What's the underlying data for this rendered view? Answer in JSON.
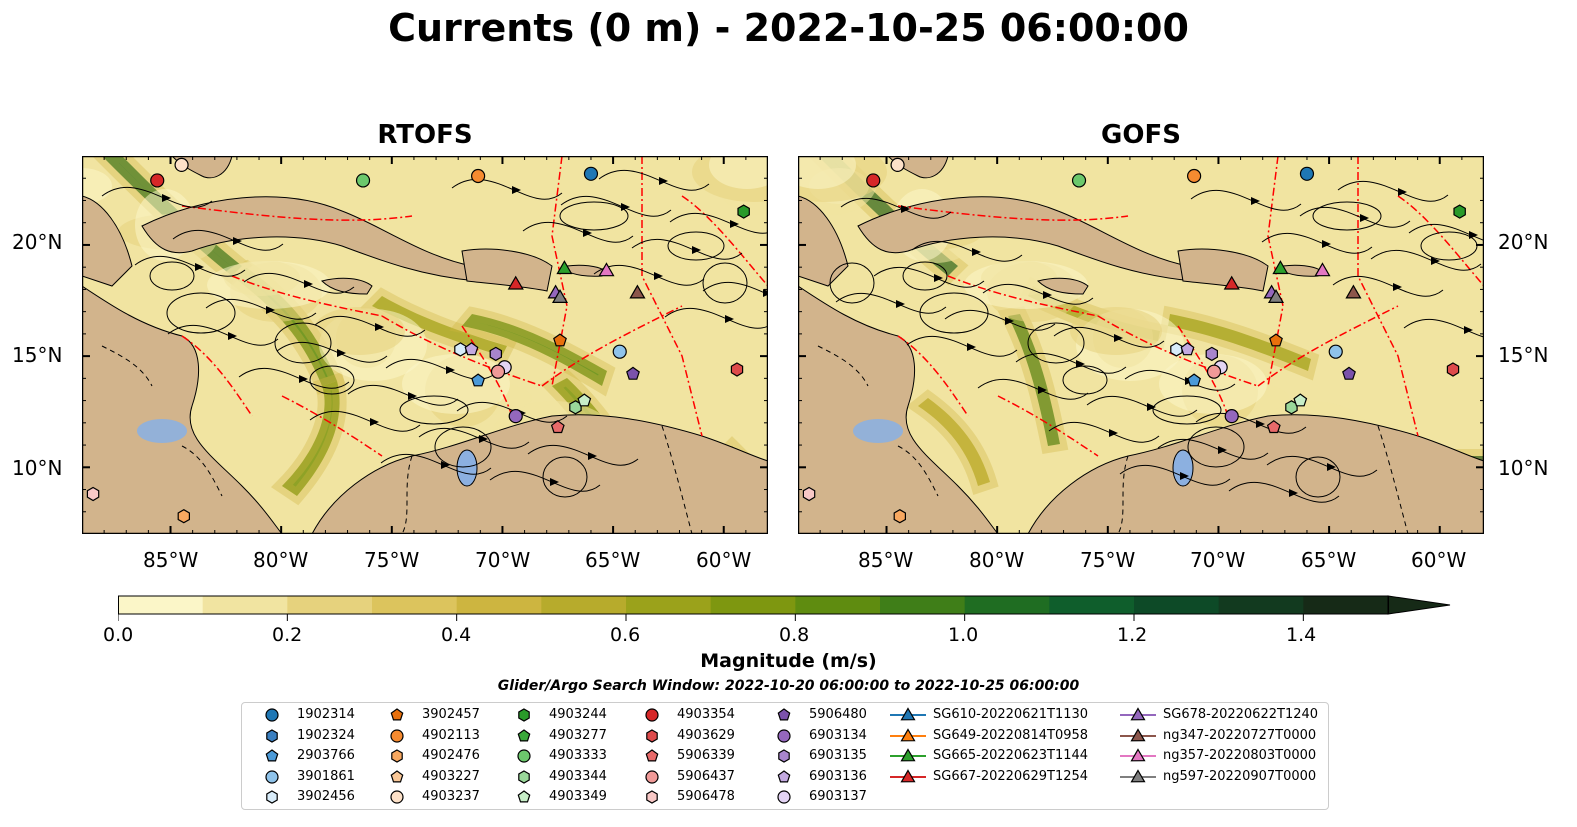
{
  "title": "Currents (0 m) - 2022-10-25 06:00:00",
  "panels": [
    {
      "title": "RTOFS"
    },
    {
      "title": "GOFS"
    }
  ],
  "lat_labels": [
    "20°N",
    "15°N",
    "10°N"
  ],
  "lon_labels": [
    "85°W",
    "80°W",
    "75°W",
    "70°W",
    "65°W",
    "60°W"
  ],
  "map_extent": {
    "lon": [
      -89,
      -58
    ],
    "lat": [
      7,
      24
    ]
  },
  "colorbar": {
    "label": "Magnitude (m/s)",
    "ticks": [
      "0.0",
      "0.2",
      "0.4",
      "0.6",
      "0.8",
      "1.0",
      "1.2",
      "1.4"
    ],
    "range": [
      0.0,
      1.5
    ],
    "extend": "max",
    "colormap_colors": [
      "#fbf6c8",
      "#f1e4a1",
      "#e6d27d",
      "#dcc45d",
      "#cdb540",
      "#b7ab2c",
      "#9ba21b",
      "#7e9710",
      "#5f8c10",
      "#3f7e18",
      "#1f6d22",
      "#0f5e2c",
      "#0d4a27",
      "#123a1f",
      "#162a17"
    ]
  },
  "search_window": "Glider/Argo Search Window: 2022-10-20 06:00:00 to 2022-10-25 06:00:00",
  "colors": {
    "land": "#d2b48c",
    "lake": "#8cb0e0",
    "boundary": "#ff0000",
    "coast": "#000000"
  },
  "legend": {
    "columns": [
      [
        {
          "label": "1902314",
          "marker": "circle",
          "color": "#1f77b4"
        },
        {
          "label": "1902324",
          "marker": "hexagon",
          "color": "#3a7fc0"
        },
        {
          "label": "2903766",
          "marker": "pentagon",
          "color": "#4b9ad8"
        },
        {
          "label": "3901861",
          "marker": "circle",
          "color": "#8fc3ea"
        },
        {
          "label": "3902456",
          "marker": "hexagon",
          "color": "#d8ecfa"
        }
      ],
      [
        {
          "label": "3902457",
          "marker": "pentagon",
          "color": "#e8700c"
        },
        {
          "label": "4902113",
          "marker": "circle",
          "color": "#f68b30"
        },
        {
          "label": "4902476",
          "marker": "hexagon",
          "color": "#f8a860"
        },
        {
          "label": "4903227",
          "marker": "pentagon",
          "color": "#fac898"
        },
        {
          "label": "4903237",
          "marker": "circle",
          "color": "#fde1c8"
        }
      ],
      [
        {
          "label": "4903244",
          "marker": "hexagon",
          "color": "#2a9a2a"
        },
        {
          "label": "4903277",
          "marker": "pentagon",
          "color": "#3aa83a"
        },
        {
          "label": "4903333",
          "marker": "circle",
          "color": "#6cc86c"
        },
        {
          "label": "4903344",
          "marker": "hexagon",
          "color": "#9ad89a"
        },
        {
          "label": "4903349",
          "marker": "pentagon",
          "color": "#c8eec8"
        }
      ],
      [
        {
          "label": "4903354",
          "marker": "circle",
          "color": "#d62728"
        },
        {
          "label": "4903629",
          "marker": "hexagon",
          "color": "#de4a4b"
        },
        {
          "label": "5906339",
          "marker": "pentagon",
          "color": "#e86a6a"
        },
        {
          "label": "5906437",
          "marker": "circle",
          "color": "#f09a98"
        },
        {
          "label": "5906478",
          "marker": "hexagon",
          "color": "#f8c8c6"
        }
      ],
      [
        {
          "label": "5906480",
          "marker": "pentagon",
          "color": "#7b52ab"
        },
        {
          "label": "6903134",
          "marker": "circle",
          "color": "#9467bd"
        },
        {
          "label": "6903135",
          "marker": "hexagon",
          "color": "#a885cc"
        },
        {
          "label": "6903136",
          "marker": "pentagon",
          "color": "#c3a9e0"
        },
        {
          "label": "6903137",
          "marker": "circle",
          "color": "#e3d4f4"
        }
      ],
      [
        {
          "label": "SG610-20220621T1130",
          "marker": "triangle",
          "color": "#1f77b4"
        },
        {
          "label": "SG649-20220814T0958",
          "marker": "triangle",
          "color": "#ff7f0e"
        },
        {
          "label": "SG665-20220623T1144",
          "marker": "triangle",
          "color": "#2ca02c"
        },
        {
          "label": "SG667-20220629T1254",
          "marker": "triangle",
          "color": "#d62728"
        }
      ],
      [
        {
          "label": "SG678-20220622T1240",
          "marker": "triangle",
          "color": "#9467bd"
        },
        {
          "label": "ng347-20220727T0000",
          "marker": "triangle",
          "color": "#8c564b"
        },
        {
          "label": "ng357-20220803T0000",
          "marker": "triangle",
          "color": "#e377c2"
        },
        {
          "label": "ng597-20220907T0000",
          "marker": "triangle",
          "color": "#7f7f7f"
        }
      ]
    ]
  },
  "markers_on_map": [
    {
      "id": "4903354",
      "lon": -85.6,
      "lat": 22.9,
      "marker": "circle",
      "color": "#d62728"
    },
    {
      "id": "4903237",
      "lon": -84.5,
      "lat": 23.6,
      "marker": "circle",
      "color": "#fde1c8"
    },
    {
      "id": "4903333",
      "lon": -76.3,
      "lat": 22.9,
      "marker": "circle",
      "color": "#6cc86c"
    },
    {
      "id": "4902113",
      "lon": -71.1,
      "lat": 23.1,
      "marker": "circle",
      "color": "#f68b30"
    },
    {
      "id": "1902314",
      "lon": -66.0,
      "lat": 23.2,
      "marker": "circle",
      "color": "#1f77b4"
    },
    {
      "id": "4903244",
      "lon": -59.1,
      "lat": 21.5,
      "marker": "hexagon",
      "color": "#2a9a2a"
    },
    {
      "id": "SG665-20220623T1144",
      "lon": -67.2,
      "lat": 18.9,
      "marker": "triangle",
      "color": "#2ca02c"
    },
    {
      "id": "ng357-20220803T0000",
      "lon": -65.3,
      "lat": 18.8,
      "marker": "triangle",
      "color": "#e377c2"
    },
    {
      "id": "SG667-20220629T1254",
      "lon": -69.4,
      "lat": 18.2,
      "marker": "triangle",
      "color": "#d62728"
    },
    {
      "id": "SG678-20220622T1240",
      "lon": -67.6,
      "lat": 17.8,
      "marker": "triangle",
      "color": "#9467bd"
    },
    {
      "id": "ng597-20220907T0000",
      "lon": -67.4,
      "lat": 17.6,
      "marker": "triangle",
      "color": "#7f7f7f"
    },
    {
      "id": "ng347-20220727T0000",
      "lon": -63.9,
      "lat": 17.8,
      "marker": "triangle",
      "color": "#8c564b"
    },
    {
      "id": "3902457",
      "lon": -67.4,
      "lat": 15.7,
      "marker": "pentagon",
      "color": "#e8700c"
    },
    {
      "id": "3901861",
      "lon": -64.7,
      "lat": 15.2,
      "marker": "circle",
      "color": "#8fc3ea"
    },
    {
      "id": "3902456",
      "lon": -71.9,
      "lat": 15.3,
      "marker": "hexagon",
      "color": "#d8ecfa"
    },
    {
      "id": "6903136",
      "lon": -71.4,
      "lat": 15.3,
      "marker": "pentagon",
      "color": "#c3a9e0"
    },
    {
      "id": "6903135",
      "lon": -70.3,
      "lat": 15.1,
      "marker": "hexagon",
      "color": "#a885cc"
    },
    {
      "id": "6903137",
      "lon": -69.9,
      "lat": 14.5,
      "marker": "circle",
      "color": "#e3d4f4"
    },
    {
      "id": "2903766",
      "lon": -71.1,
      "lat": 13.9,
      "marker": "pentagon",
      "color": "#4b9ad8"
    },
    {
      "id": "5906437",
      "lon": -70.2,
      "lat": 14.3,
      "marker": "circle",
      "color": "#f09a98"
    },
    {
      "id": "5906480",
      "lon": -64.1,
      "lat": 14.2,
      "marker": "pentagon",
      "color": "#7b52ab"
    },
    {
      "id": "4903629",
      "lon": -59.4,
      "lat": 14.4,
      "marker": "hexagon",
      "color": "#de4a4b"
    },
    {
      "id": "6903134",
      "lon": -69.4,
      "lat": 12.3,
      "marker": "circle",
      "color": "#9467bd"
    },
    {
      "id": "4903344",
      "lon": -66.7,
      "lat": 12.7,
      "marker": "hexagon",
      "color": "#9ad89a"
    },
    {
      "id": "4903349",
      "lon": -66.3,
      "lat": 13.0,
      "marker": "pentagon",
      "color": "#c8eec8"
    },
    {
      "id": "5906339",
      "lon": -67.5,
      "lat": 11.8,
      "marker": "pentagon",
      "color": "#e86a6a"
    },
    {
      "id": "5906478",
      "lon": -88.5,
      "lat": 8.8,
      "marker": "hexagon",
      "color": "#f8c8c6"
    },
    {
      "id": "4902476",
      "lon": -84.4,
      "lat": 7.8,
      "marker": "hexagon",
      "color": "#f8a860"
    }
  ]
}
